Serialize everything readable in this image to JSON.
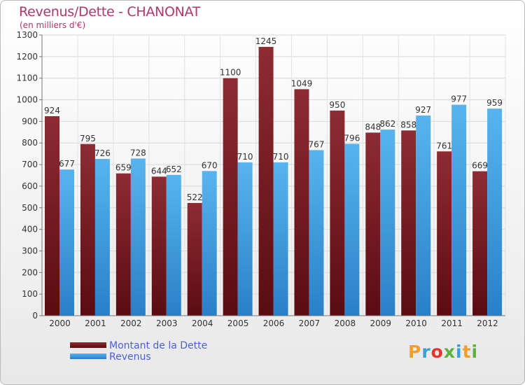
{
  "header": {
    "title": "Revenus/Dette - CHANONAT",
    "subtitle": "(en milliers d'€)"
  },
  "legend": {
    "items": [
      {
        "label": "Montant de la Dette",
        "color": "#7a1a1f"
      },
      {
        "label": "Revenus",
        "color": "#3b9ee3"
      }
    ]
  },
  "logo": {
    "text": "Proxiti",
    "letters": [
      "P",
      "r",
      "o",
      "x",
      "i",
      "t",
      "i"
    ],
    "colors": [
      "#f0a02a",
      "#3a9fd8",
      "#e4342d",
      "#5bb33a",
      "#3a9fd8",
      "#f0a02a",
      "#5bb33a"
    ]
  },
  "chart_data": {
    "type": "bar",
    "title": "Revenus/Dette - CHANONAT",
    "subtitle": "(en milliers d'€)",
    "xlabel": "",
    "ylabel": "",
    "ylim": [
      0,
      1300
    ],
    "ytick_step": 100,
    "grid": true,
    "categories": [
      "2000",
      "2001",
      "2002",
      "2003",
      "2004",
      "2005",
      "2006",
      "2007",
      "2008",
      "2009",
      "2010",
      "2011",
      "2012"
    ],
    "series": [
      {
        "name": "Montant de la Dette",
        "values": [
          924,
          795,
          659,
          644,
          522,
          1100,
          1245,
          1049,
          950,
          848,
          858,
          761,
          669
        ]
      },
      {
        "name": "Revenus",
        "values": [
          677,
          726,
          728,
          652,
          670,
          710,
          710,
          767,
          796,
          862,
          927,
          977,
          959
        ]
      }
    ]
  }
}
